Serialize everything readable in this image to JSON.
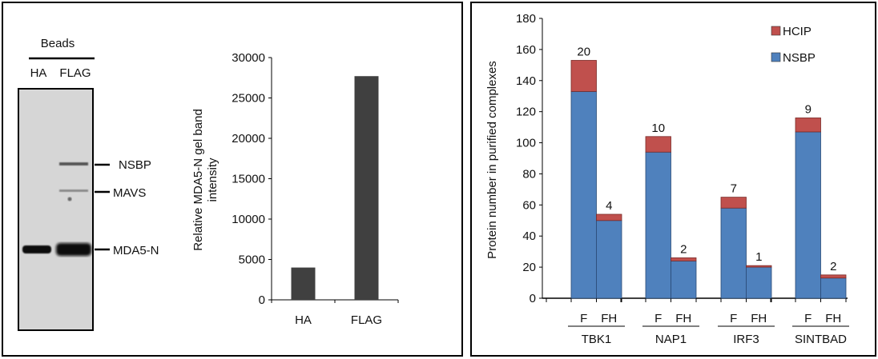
{
  "gel": {
    "beads_label": "Beads",
    "lane_labels": [
      "HA",
      "FLAG"
    ],
    "band_labels": [
      "NSBP",
      "MAVS",
      "MDA5-N"
    ]
  },
  "chart_data": [
    {
      "type": "bar",
      "categories": [
        "HA",
        "FLAG"
      ],
      "values": [
        4000,
        27700
      ],
      "title": "",
      "xlabel": "",
      "ylabel": "Relative MDA5-N gel band intensity",
      "ylabel_lines": [
        "Relative MDA5-N gel band",
        "intensity"
      ],
      "ylim": [
        0,
        30000
      ],
      "yticks": [
        0,
        5000,
        10000,
        15000,
        20000,
        25000,
        30000
      ],
      "color": "#404040",
      "grid": false
    },
    {
      "type": "bar",
      "stacked": true,
      "groups": [
        "TBK1",
        "NAP1",
        "IRF3",
        "SINTBAD"
      ],
      "subcategories": [
        "F",
        "FH"
      ],
      "series": [
        {
          "name": "NSBP",
          "color": "#4f81bd",
          "values": [
            [
              133,
              50
            ],
            [
              94,
              24
            ],
            [
              58,
              20
            ],
            [
              107,
              13
            ]
          ]
        },
        {
          "name": "HCIP",
          "color": "#c0504d",
          "values": [
            [
              20,
              4
            ],
            [
              10,
              2
            ],
            [
              7,
              1
            ],
            [
              9,
              2
            ]
          ]
        }
      ],
      "data_labels": [
        [
          "20",
          "4"
        ],
        [
          "10",
          "2"
        ],
        [
          "7",
          "1"
        ],
        [
          "9",
          "2"
        ]
      ],
      "ylabel": "Protein number in purified complexes",
      "xlabel": "",
      "ylim": [
        0,
        180
      ],
      "yticks": [
        0,
        20,
        40,
        60,
        80,
        100,
        120,
        140,
        160,
        180
      ],
      "legend": {
        "position": "top-right",
        "entries": [
          "HCIP",
          "NSBP"
        ]
      },
      "grid": false
    }
  ]
}
